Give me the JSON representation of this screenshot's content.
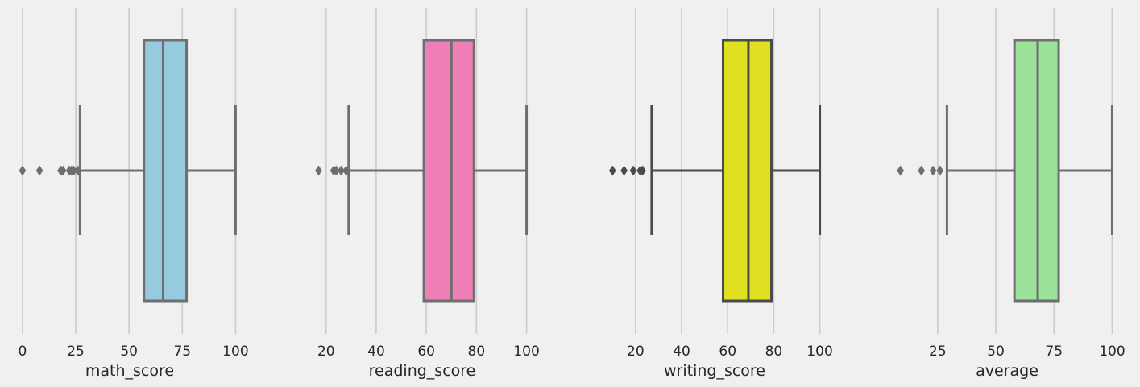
{
  "chart_data": [
    {
      "type": "boxplot",
      "orient": "horizontal",
      "xlabel": "math_score",
      "xlim": [
        -3,
        104
      ],
      "ticks": [
        0,
        25,
        50,
        75,
        100
      ],
      "tick_labels": [
        "0",
        "25",
        "50",
        "75",
        "100"
      ],
      "grid": true,
      "box": {
        "q1": 57,
        "median": 66,
        "q3": 77,
        "whisker_low": 27,
        "whisker_high": 100
      },
      "outliers": [
        0,
        8,
        18,
        19,
        22,
        23,
        24,
        26
      ],
      "fill": "#95cadf",
      "edge": "#6e6e6e"
    },
    {
      "type": "boxplot",
      "orient": "horizontal",
      "xlabel": "reading_score",
      "xlim": [
        13,
        104
      ],
      "ticks": [
        20,
        40,
        60,
        80,
        100
      ],
      "tick_labels": [
        "20",
        "40",
        "60",
        "80",
        "100"
      ],
      "grid": true,
      "box": {
        "q1": 59,
        "median": 70,
        "q3": 79,
        "whisker_low": 29,
        "whisker_high": 100
      },
      "outliers": [
        17,
        23,
        24,
        26,
        28
      ],
      "fill": "#ed7fb6",
      "edge": "#6e6e6e"
    },
    {
      "type": "boxplot",
      "orient": "horizontal",
      "xlabel": "writing_score",
      "xlim": [
        5,
        104
      ],
      "ticks": [
        20,
        40,
        60,
        80,
        100
      ],
      "tick_labels": [
        "20",
        "40",
        "60",
        "80",
        "100"
      ],
      "grid": true,
      "box": {
        "q1": 58,
        "median": 69,
        "q3": 79,
        "whisker_low": 27,
        "whisker_high": 100
      },
      "outliers": [
        10,
        15,
        19,
        22,
        23
      ],
      "fill": "#e0e022",
      "edge": "#4a4a4a"
    },
    {
      "type": "boxplot",
      "orient": "horizontal",
      "xlabel": "average",
      "xlim": [
        6,
        104
      ],
      "ticks": [
        25,
        50,
        75,
        100
      ],
      "tick_labels": [
        "25",
        "50",
        "75",
        "100"
      ],
      "grid": true,
      "box": {
        "q1": 58,
        "median": 68,
        "q3": 77,
        "whisker_low": 29,
        "whisker_high": 100
      },
      "outliers": [
        9,
        18,
        23,
        26
      ],
      "fill": "#9ce29a",
      "edge": "#6e6e6e"
    }
  ]
}
